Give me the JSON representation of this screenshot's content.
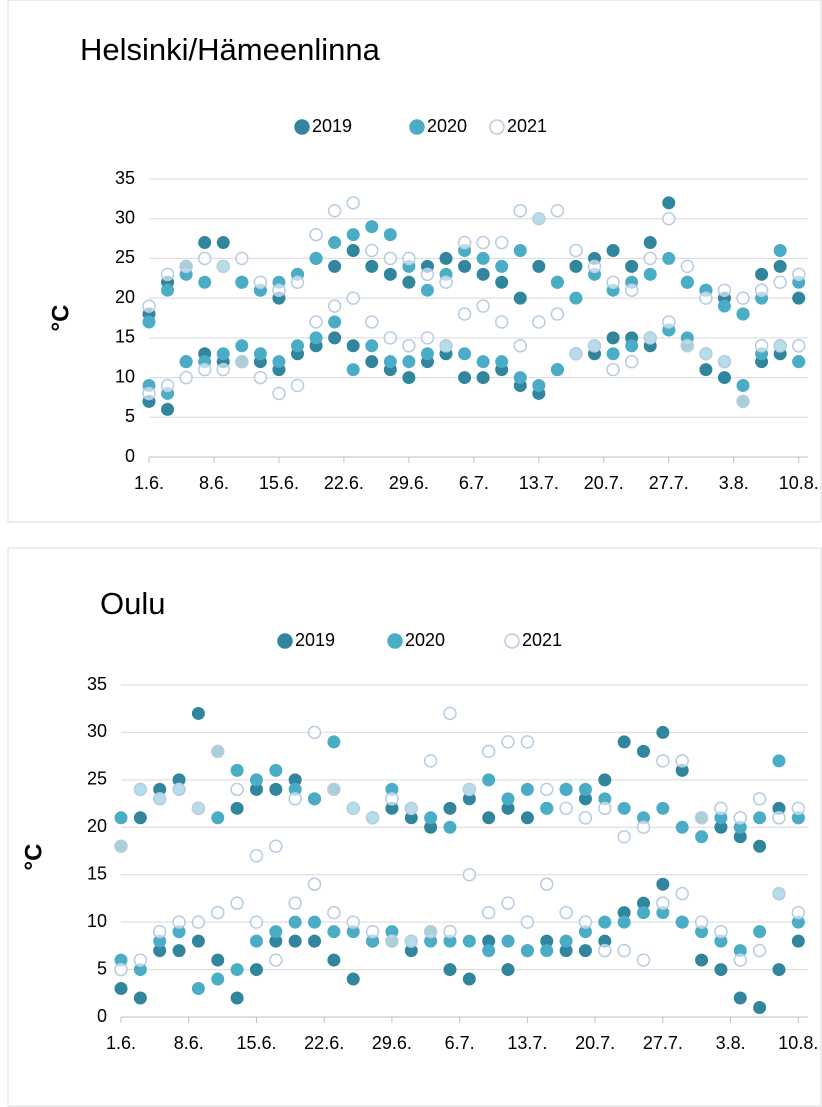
{
  "chart_data": [
    {
      "type": "scatter",
      "title": "Helsinki/Hämeenlinna",
      "ylabel": "°C",
      "legend": "top",
      "grid": true,
      "xlim": [
        0,
        71
      ],
      "xticks": [
        {
          "value": 0,
          "label": "1.6."
        },
        {
          "value": 7,
          "label": "8.6."
        },
        {
          "value": 14,
          "label": "15.6."
        },
        {
          "value": 21,
          "label": "22.6."
        },
        {
          "value": 28,
          "label": "29.6."
        },
        {
          "value": 35,
          "label": "6.7."
        },
        {
          "value": 42,
          "label": "13.7."
        },
        {
          "value": 49,
          "label": "20.7."
        },
        {
          "value": 56,
          "label": "27.7."
        },
        {
          "value": 63,
          "label": "3.8."
        },
        {
          "value": 70,
          "label": "10.8."
        }
      ],
      "ylim": [
        0,
        35
      ],
      "yticks": [
        0,
        5,
        10,
        15,
        20,
        25,
        30,
        35
      ],
      "x": [
        0,
        0,
        2,
        2,
        4,
        4,
        6,
        6,
        8,
        8,
        10,
        10,
        12,
        12,
        14,
        14,
        16,
        16,
        18,
        18,
        20,
        20,
        22,
        22,
        24,
        24,
        26,
        26,
        28,
        28,
        30,
        30,
        32,
        32,
        34,
        34,
        36,
        36,
        38,
        38,
        40,
        40,
        42,
        42,
        44,
        44,
        46,
        46,
        48,
        48,
        50,
        50,
        52,
        52,
        54,
        54,
        56,
        56,
        58,
        58,
        60,
        60,
        62,
        62,
        64,
        64,
        66,
        66,
        68,
        68,
        70,
        70
      ],
      "series": [
        {
          "name": "2019",
          "color": "#31859c",
          "values": [
            7,
            18,
            6,
            22,
            12,
            24,
            13,
            27,
            12,
            27,
            12,
            22,
            12,
            21,
            11,
            20,
            13,
            23,
            14,
            25,
            15,
            24,
            14,
            26,
            12,
            24,
            11,
            23,
            10,
            22,
            12,
            24,
            13,
            25,
            10,
            24,
            10,
            23,
            11,
            22,
            9,
            20,
            8,
            24,
            11,
            22,
            13,
            24,
            13,
            25,
            15,
            26,
            15,
            24,
            14,
            27,
            16,
            32,
            14,
            22,
            11,
            21,
            10,
            20,
            7,
            18,
            12,
            23,
            13,
            24,
            12,
            20
          ]
        },
        {
          "name": "2020",
          "color": "#4bacc6",
          "values": [
            9,
            17,
            8,
            21,
            12,
            23,
            12,
            22,
            13,
            24,
            14,
            22,
            13,
            21,
            12,
            22,
            14,
            23,
            15,
            25,
            17,
            27,
            11,
            28,
            14,
            29,
            12,
            28,
            12,
            24,
            13,
            21,
            14,
            23,
            13,
            26,
            12,
            25,
            12,
            24,
            10,
            26,
            9,
            30,
            11,
            22,
            13,
            20,
            14,
            23,
            13,
            21,
            14,
            22,
            15,
            23,
            16,
            25,
            15,
            22,
            13,
            21,
            12,
            19,
            9,
            18,
            13,
            20,
            14,
            26,
            12,
            22
          ]
        },
        {
          "name": "2021",
          "color": "#b8cce4",
          "values": [
            8,
            19,
            9,
            23,
            10,
            24,
            11,
            25,
            11,
            24,
            12,
            25,
            10,
            22,
            8,
            21,
            9,
            22,
            17,
            28,
            19,
            31,
            20,
            32,
            17,
            26,
            15,
            25,
            14,
            25,
            15,
            23,
            14,
            22,
            18,
            27,
            19,
            27,
            17,
            27,
            14,
            31,
            17,
            30,
            18,
            31,
            13,
            26,
            14,
            24,
            11,
            22,
            12,
            21,
            15,
            25,
            17,
            30,
            14,
            24,
            13,
            20,
            12,
            21,
            7,
            20,
            14,
            21,
            14,
            22,
            14,
            23
          ]
        }
      ]
    },
    {
      "type": "scatter",
      "title": "Oulu",
      "ylabel": "°C",
      "legend": "top",
      "grid": true,
      "xlim": [
        0,
        71
      ],
      "xticks": [
        {
          "value": 0,
          "label": "1.6."
        },
        {
          "value": 7,
          "label": "8.6."
        },
        {
          "value": 14,
          "label": "15.6."
        },
        {
          "value": 21,
          "label": "22.6."
        },
        {
          "value": 28,
          "label": "29.6."
        },
        {
          "value": 35,
          "label": "6.7."
        },
        {
          "value": 42,
          "label": "13.7."
        },
        {
          "value": 49,
          "label": "20.7."
        },
        {
          "value": 56,
          "label": "27.7."
        },
        {
          "value": 63,
          "label": "3.8."
        },
        {
          "value": 70,
          "label": "10.8."
        }
      ],
      "ylim": [
        0,
        35
      ],
      "yticks": [
        0,
        5,
        10,
        15,
        20,
        25,
        30,
        35
      ],
      "x": [
        0,
        0,
        2,
        2,
        4,
        4,
        6,
        6,
        8,
        8,
        10,
        10,
        12,
        12,
        14,
        14,
        16,
        16,
        18,
        18,
        20,
        20,
        22,
        22,
        24,
        24,
        26,
        26,
        28,
        28,
        30,
        30,
        32,
        32,
        34,
        34,
        36,
        36,
        38,
        38,
        40,
        40,
        42,
        42,
        44,
        44,
        46,
        46,
        48,
        48,
        50,
        50,
        52,
        52,
        54,
        54,
        56,
        56,
        58,
        58,
        60,
        60,
        62,
        62,
        64,
        64,
        66,
        66,
        68,
        68,
        70,
        70
      ],
      "series": [
        {
          "name": "2019",
          "color": "#31859c",
          "values": [
            3,
            18,
            2,
            21,
            7,
            24,
            7,
            25,
            8,
            32,
            6,
            28,
            2,
            22,
            5,
            24,
            8,
            24,
            8,
            25,
            8,
            23,
            6,
            24,
            4,
            22,
            8,
            21,
            8,
            22,
            7,
            21,
            9,
            20,
            5,
            22,
            4,
            23,
            8,
            21,
            5,
            22,
            7,
            21,
            8,
            22,
            7,
            24,
            7,
            23,
            8,
            25,
            11,
            29,
            12,
            28,
            14,
            30,
            10,
            26,
            6,
            21,
            5,
            20,
            2,
            19,
            1,
            18,
            5,
            22,
            8,
            21
          ]
        },
        {
          "name": "2020",
          "color": "#4bacc6",
          "values": [
            6,
            21,
            5,
            24,
            8,
            23,
            9,
            24,
            3,
            22,
            4,
            21,
            5,
            26,
            8,
            25,
            9,
            26,
            10,
            24,
            10,
            23,
            9,
            29,
            9,
            22,
            8,
            21,
            9,
            24,
            8,
            22,
            8,
            21,
            8,
            20,
            8,
            24,
            7,
            25,
            8,
            23,
            7,
            24,
            7,
            22,
            8,
            24,
            9,
            24,
            10,
            23,
            10,
            22,
            11,
            21,
            11,
            22,
            10,
            20,
            9,
            19,
            8,
            21,
            7,
            20,
            9,
            21,
            13,
            27,
            10,
            21
          ]
        },
        {
          "name": "2021",
          "color": "#b8cce4",
          "values": [
            5,
            18,
            6,
            24,
            9,
            23,
            10,
            24,
            10,
            22,
            11,
            28,
            12,
            24,
            10,
            17,
            6,
            18,
            12,
            23,
            14,
            30,
            11,
            24,
            10,
            22,
            9,
            21,
            8,
            23,
            8,
            22,
            9,
            27,
            9,
            32,
            15,
            24,
            11,
            28,
            12,
            29,
            10,
            29,
            14,
            24,
            11,
            22,
            10,
            21,
            7,
            22,
            7,
            19,
            6,
            20,
            12,
            27,
            13,
            27,
            10,
            21,
            9,
            22,
            6,
            21,
            7,
            23,
            13,
            21,
            11,
            22
          ]
        }
      ]
    }
  ]
}
